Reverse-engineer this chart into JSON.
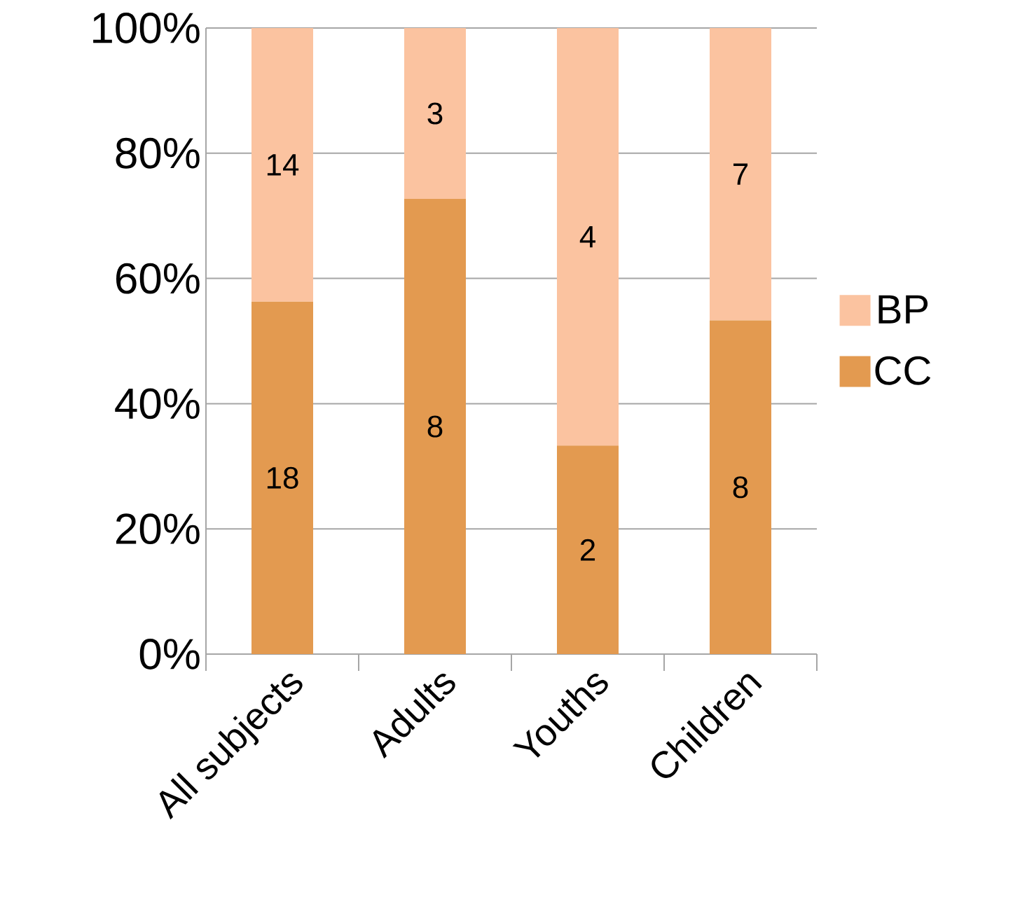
{
  "chart_data": {
    "type": "bar",
    "stacked": true,
    "categories": [
      "All subjects",
      "Adults",
      "Youths",
      "Children"
    ],
    "series": [
      {
        "name": "CC",
        "color": "#e39a50",
        "values": [
          56.3,
          72.7,
          33.3,
          53.3
        ]
      },
      {
        "name": "BP",
        "color": "#fbc3a0",
        "values": [
          43.7,
          27.3,
          66.7,
          46.7
        ]
      }
    ],
    "ylim": [
      0,
      100
    ],
    "yticks": [
      {
        "value": 0,
        "label": "0%"
      },
      {
        "value": 20,
        "label": "20%"
      },
      {
        "value": 40,
        "label": "40%"
      },
      {
        "value": 60,
        "label": "60%"
      },
      {
        "value": 80,
        "label": "80%"
      },
      {
        "value": 100,
        "label": "100%"
      }
    ],
    "annotations": [
      "18",
      "14",
      "8",
      "3",
      "2",
      "4",
      "8",
      "7"
    ],
    "grid": "y",
    "legend": "right"
  }
}
